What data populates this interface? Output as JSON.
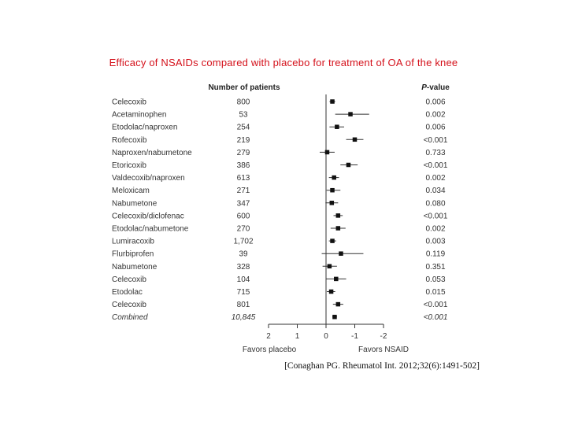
{
  "title": "Efficacy of NSAIDs compared with placebo for treatment of OA of the knee",
  "citation": "[Conaghan PG. Rheumatol Int. 2012;32(6):1491-502]",
  "colors": {
    "title": "#d4101a",
    "marker": "#111111",
    "line": "#333333",
    "text": "#333333"
  },
  "chart_data": {
    "type": "forest",
    "column_headers": {
      "patients": "Number of patients",
      "pvalue": "P-value",
      "pvalue_italic_part": "P"
    },
    "xlim": [
      -2,
      2
    ],
    "x_axis_direction": "reversed",
    "xticks": [
      -2,
      -1,
      0,
      1,
      2
    ],
    "xtick_labels": [
      "2",
      "1",
      "0",
      "-1",
      "-2"
    ],
    "left_label": "Favors placebo",
    "right_label": "Favors NSAID",
    "rows": [
      {
        "name": "Celecoxib",
        "n": "800",
        "p": "0.006",
        "est": 0.22,
        "lo": 0.12,
        "hi": 0.32
      },
      {
        "name": "Acetaminophen",
        "n": "53",
        "p": "0.002",
        "est": 0.85,
        "lo": 0.32,
        "hi": 1.5
      },
      {
        "name": "Etodolac/naproxen",
        "n": "254",
        "p": "0.006",
        "est": 0.38,
        "lo": 0.12,
        "hi": 0.63
      },
      {
        "name": "Rofecoxib",
        "n": "219",
        "p": "<0.001",
        "est": 1.0,
        "lo": 0.7,
        "hi": 1.3
      },
      {
        "name": "Naproxen/nabumetone",
        "n": "279",
        "p": "0.733",
        "est": 0.04,
        "lo": -0.22,
        "hi": 0.3
      },
      {
        "name": "Etoricoxib",
        "n": "386",
        "p": "<0.001",
        "est": 0.78,
        "lo": 0.5,
        "hi": 1.1
      },
      {
        "name": "Valdecoxib/naproxen",
        "n": "613",
        "p": "0.002",
        "est": 0.28,
        "lo": 0.1,
        "hi": 0.45
      },
      {
        "name": "Meloxicam",
        "n": "271",
        "p": "0.034",
        "est": 0.22,
        "lo": 0.02,
        "hi": 0.5
      },
      {
        "name": "Nabumetone",
        "n": "347",
        "p": "0.080",
        "est": 0.2,
        "lo": -0.02,
        "hi": 0.42
      },
      {
        "name": "Celecoxib/diclofenac",
        "n": "600",
        "p": "<0.001",
        "est": 0.42,
        "lo": 0.26,
        "hi": 0.58
      },
      {
        "name": "Etodolac/nabumetone",
        "n": "270",
        "p": "0.002",
        "est": 0.42,
        "lo": 0.16,
        "hi": 0.68
      },
      {
        "name": "Lumiracoxib",
        "n": "1,702",
        "p": "0.003",
        "est": 0.22,
        "lo": 0.1,
        "hi": 0.35
      },
      {
        "name": "Flurbiprofen",
        "n": "39",
        "p": "0.119",
        "est": 0.52,
        "lo": -0.15,
        "hi": 1.3
      },
      {
        "name": "Nabumetone",
        "n": "328",
        "p": "0.351",
        "est": 0.12,
        "lo": -0.12,
        "hi": 0.38
      },
      {
        "name": "Celecoxib",
        "n": "104",
        "p": "0.053",
        "est": 0.35,
        "lo": 0.0,
        "hi": 0.7
      },
      {
        "name": "Etodolac",
        "n": "715",
        "p": "0.015",
        "est": 0.18,
        "lo": 0.03,
        "hi": 0.32
      },
      {
        "name": "Celecoxib",
        "n": "801",
        "p": "<0.001",
        "est": 0.42,
        "lo": 0.24,
        "hi": 0.6
      },
      {
        "name": "Combined",
        "n": "10,845",
        "p": "<0.001",
        "est": 0.3,
        "lo": 0.22,
        "hi": 0.38,
        "summary": true
      }
    ]
  }
}
